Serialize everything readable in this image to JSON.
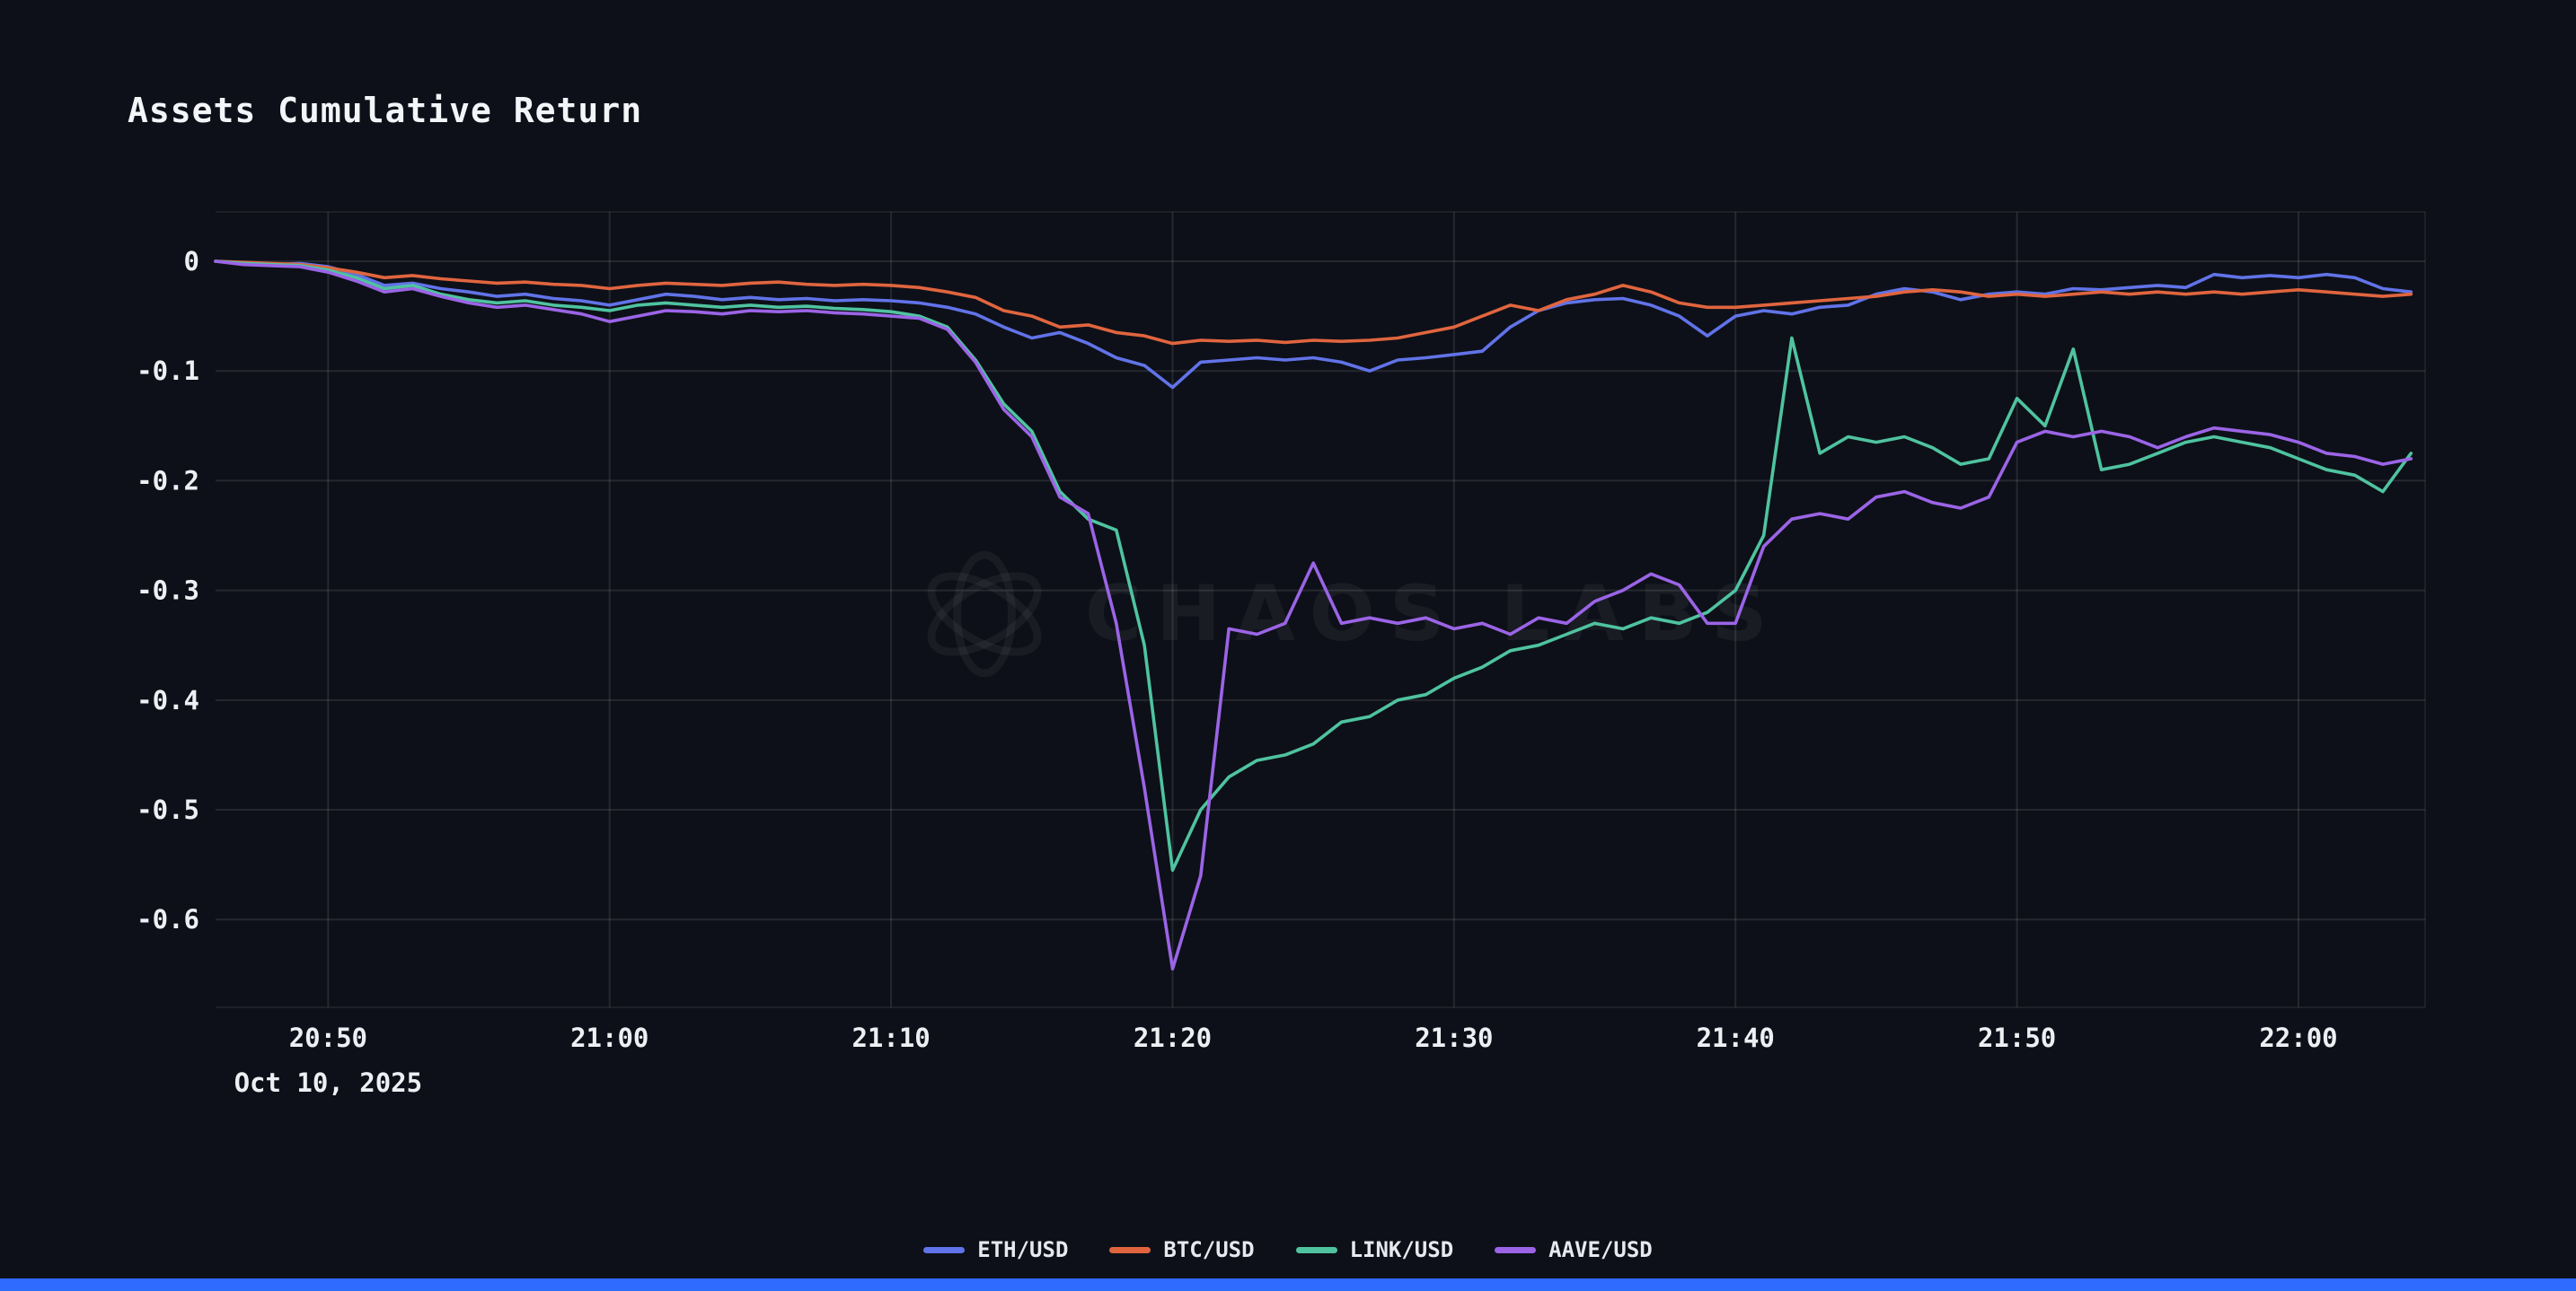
{
  "page": {
    "background": "#0d1018",
    "accent_bar_color": "#2f6bff"
  },
  "chart_data": {
    "type": "line",
    "title": "Assets Cumulative Return",
    "watermark": "CHAOS LABS",
    "grid": true,
    "legend_position": "bottom",
    "x_axis": {
      "date_label": "Oct 10, 2025",
      "tick_labels": [
        "20:50",
        "21:00",
        "21:10",
        "21:20",
        "21:30",
        "21:40",
        "21:50",
        "22:00"
      ],
      "tick_positions": [
        4,
        14,
        24,
        34,
        44,
        54,
        64,
        74
      ],
      "range": [
        0,
        78.5
      ]
    },
    "y_axis": {
      "tick_values": [
        0,
        -0.1,
        -0.2,
        -0.3,
        -0.4,
        -0.5,
        -0.6
      ],
      "tick_labels": [
        "0",
        "-0.1",
        "-0.2",
        "-0.3",
        "-0.4",
        "-0.5",
        "-0.6"
      ],
      "range": [
        -0.68,
        0.045
      ]
    },
    "colors": {
      "grid": "rgba(255,255,255,0.10)",
      "tick_text": "#edeff3"
    },
    "series": [
      {
        "name": "ETH/USD",
        "color": "#6173e8",
        "values": [
          0,
          -0.002,
          -0.003,
          -0.002,
          -0.005,
          -0.012,
          -0.022,
          -0.02,
          -0.025,
          -0.028,
          -0.032,
          -0.03,
          -0.034,
          -0.036,
          -0.04,
          -0.035,
          -0.03,
          -0.032,
          -0.035,
          -0.033,
          -0.035,
          -0.034,
          -0.036,
          -0.035,
          -0.036,
          -0.038,
          -0.042,
          -0.048,
          -0.06,
          -0.07,
          -0.065,
          -0.075,
          -0.088,
          -0.095,
          -0.115,
          -0.092,
          -0.09,
          -0.088,
          -0.09,
          -0.088,
          -0.092,
          -0.1,
          -0.09,
          -0.088,
          -0.085,
          -0.082,
          -0.06,
          -0.045,
          -0.038,
          -0.035,
          -0.034,
          -0.04,
          -0.05,
          -0.068,
          -0.05,
          -0.045,
          -0.048,
          -0.042,
          -0.04,
          -0.03,
          -0.025,
          -0.028,
          -0.035,
          -0.03,
          -0.028,
          -0.03,
          -0.025,
          -0.026,
          -0.024,
          -0.022,
          -0.024,
          -0.012,
          -0.015,
          -0.013,
          -0.015,
          -0.012,
          -0.015,
          -0.025,
          -0.028
        ]
      },
      {
        "name": "BTC/USD",
        "color": "#e0653f",
        "values": [
          0,
          -0.001,
          -0.002,
          -0.003,
          -0.006,
          -0.01,
          -0.015,
          -0.013,
          -0.016,
          -0.018,
          -0.02,
          -0.019,
          -0.021,
          -0.022,
          -0.025,
          -0.022,
          -0.02,
          -0.021,
          -0.022,
          -0.02,
          -0.019,
          -0.021,
          -0.022,
          -0.021,
          -0.022,
          -0.024,
          -0.028,
          -0.033,
          -0.045,
          -0.05,
          -0.06,
          -0.058,
          -0.065,
          -0.068,
          -0.075,
          -0.072,
          -0.073,
          -0.072,
          -0.074,
          -0.072,
          -0.073,
          -0.072,
          -0.07,
          -0.065,
          -0.06,
          -0.05,
          -0.04,
          -0.045,
          -0.035,
          -0.03,
          -0.022,
          -0.028,
          -0.038,
          -0.042,
          -0.042,
          -0.04,
          -0.038,
          -0.036,
          -0.034,
          -0.032,
          -0.028,
          -0.026,
          -0.028,
          -0.032,
          -0.03,
          -0.032,
          -0.03,
          -0.028,
          -0.03,
          -0.028,
          -0.03,
          -0.028,
          -0.03,
          -0.028,
          -0.026,
          -0.028,
          -0.03,
          -0.032,
          -0.03
        ]
      },
      {
        "name": "LINK/USD",
        "color": "#4fc3a0",
        "values": [
          0,
          -0.002,
          -0.003,
          -0.004,
          -0.008,
          -0.015,
          -0.025,
          -0.022,
          -0.03,
          -0.035,
          -0.038,
          -0.036,
          -0.04,
          -0.042,
          -0.045,
          -0.04,
          -0.038,
          -0.04,
          -0.042,
          -0.04,
          -0.042,
          -0.041,
          -0.043,
          -0.044,
          -0.046,
          -0.05,
          -0.06,
          -0.09,
          -0.13,
          -0.155,
          -0.21,
          -0.235,
          -0.245,
          -0.35,
          -0.555,
          -0.5,
          -0.47,
          -0.455,
          -0.45,
          -0.44,
          -0.42,
          -0.415,
          -0.4,
          -0.395,
          -0.38,
          -0.37,
          -0.355,
          -0.35,
          -0.34,
          -0.33,
          -0.335,
          -0.325,
          -0.33,
          -0.32,
          -0.3,
          -0.25,
          -0.07,
          -0.175,
          -0.16,
          -0.165,
          -0.16,
          -0.17,
          -0.185,
          -0.18,
          -0.125,
          -0.15,
          -0.08,
          -0.19,
          -0.185,
          -0.175,
          -0.165,
          -0.16,
          -0.165,
          -0.17,
          -0.18,
          -0.19,
          -0.195,
          -0.21,
          -0.175
        ]
      },
      {
        "name": "AAVE/USD",
        "color": "#9b64e6",
        "values": [
          0,
          -0.003,
          -0.004,
          -0.005,
          -0.01,
          -0.018,
          -0.028,
          -0.025,
          -0.032,
          -0.038,
          -0.042,
          -0.04,
          -0.044,
          -0.048,
          -0.055,
          -0.05,
          -0.045,
          -0.046,
          -0.048,
          -0.045,
          -0.046,
          -0.045,
          -0.047,
          -0.048,
          -0.05,
          -0.052,
          -0.062,
          -0.092,
          -0.135,
          -0.16,
          -0.215,
          -0.23,
          -0.33,
          -0.48,
          -0.645,
          -0.56,
          -0.335,
          -0.34,
          -0.33,
          -0.275,
          -0.33,
          -0.325,
          -0.33,
          -0.325,
          -0.335,
          -0.33,
          -0.34,
          -0.325,
          -0.33,
          -0.31,
          -0.3,
          -0.285,
          -0.295,
          -0.33,
          -0.33,
          -0.26,
          -0.235,
          -0.23,
          -0.235,
          -0.215,
          -0.21,
          -0.22,
          -0.225,
          -0.215,
          -0.165,
          -0.155,
          -0.16,
          -0.155,
          -0.16,
          -0.17,
          -0.16,
          -0.152,
          -0.155,
          -0.158,
          -0.165,
          -0.175,
          -0.178,
          -0.185,
          -0.18
        ]
      }
    ]
  }
}
